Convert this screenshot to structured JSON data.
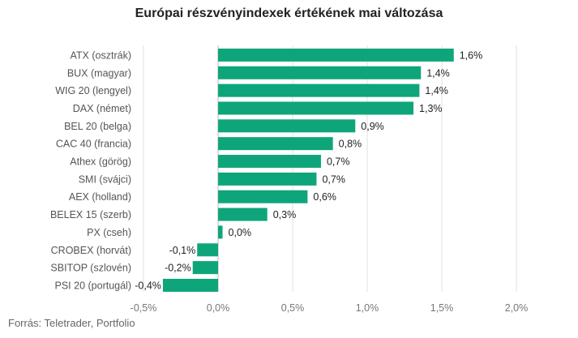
{
  "chart_data": {
    "type": "bar",
    "orientation": "horizontal",
    "title": "Európai részvényindexek értékének mai változása",
    "xlabel": "",
    "ylabel": "",
    "categories": [
      "ATX (osztrák)",
      "BUX (magyar)",
      "WIG 20 (lengyel)",
      "DAX (német)",
      "BEL 20 (belga)",
      "CAC 40 (francia)",
      "Athex (görög)",
      "SMI (svájci)",
      "AEX (holland)",
      "BELEX 15 (szerb)",
      "PX (cseh)",
      "CROBEX (horvát)",
      "SBITOP (szlovén)",
      "PSI 20 (portugál)"
    ],
    "values": [
      1.58,
      1.36,
      1.35,
      1.31,
      0.92,
      0.77,
      0.69,
      0.66,
      0.6,
      0.33,
      0.03,
      -0.14,
      -0.17,
      -0.37
    ],
    "value_labels": [
      "1,6%",
      "1,4%",
      "1,4%",
      "1,3%",
      "0,9%",
      "0,8%",
      "0,7%",
      "0,7%",
      "0,6%",
      "0,3%",
      "0,0%",
      "-0,1%",
      "-0,2%",
      "-0,4%"
    ],
    "xlim": [
      -0.5,
      2.0
    ],
    "xticks": [
      -0.5,
      0,
      0.5,
      1.0,
      1.5,
      2.0
    ],
    "xtick_labels": [
      "-0,5%",
      "0,0%",
      "0,5%",
      "1,0%",
      "1,5%",
      "2,0%"
    ],
    "grid": true,
    "bar_color": "#0fa57a"
  },
  "source": "Forrás: Teletrader, Portfolio"
}
